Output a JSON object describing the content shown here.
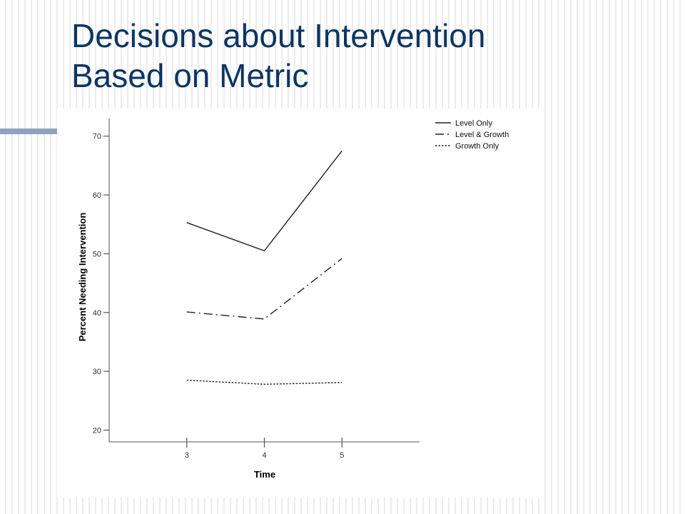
{
  "slide": {
    "title_line1": "Decisions about Intervention",
    "title_line2": "Based on Metric",
    "title_color": "#0b3566",
    "accent_color": "#8da4bf"
  },
  "chart_data": {
    "type": "line",
    "x": [
      3,
      4,
      5
    ],
    "xlabel": "Time",
    "ylabel": "Percent Needing Intervention",
    "ylim": [
      18,
      73
    ],
    "yticks": [
      20,
      30,
      40,
      50,
      60,
      70
    ],
    "xticks": [
      3,
      4,
      5
    ],
    "grid": false,
    "legend_position": "top-right",
    "series": [
      {
        "name": "Level Only",
        "values": [
          55.3,
          50.5,
          67.5
        ],
        "dash": "solid",
        "color": "#222222"
      },
      {
        "name": "Level & Growth",
        "values": [
          40.1,
          38.9,
          49.2
        ],
        "dash": "dash-dot",
        "color": "#222222"
      },
      {
        "name": "Growth Only",
        "values": [
          28.5,
          27.8,
          28.1
        ],
        "dash": "dotted",
        "color": "#222222"
      }
    ]
  }
}
